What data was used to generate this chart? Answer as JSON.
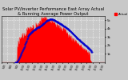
{
  "title": "Solar PV/Inverter Performance East Array Actual & Running Average Power Output",
  "title_fontsize": 3.8,
  "bg_color": "#c8c8c8",
  "plot_bg_color": "#c8c8c8",
  "grid_color": "#ffffff",
  "area_color": "#ff0000",
  "avg_color": "#0000cc",
  "ylim": [
    0,
    5500
  ],
  "xlim": [
    0,
    287
  ],
  "n_points": 288,
  "legend_fontsize": 2.8,
  "ytick_labels": [
    "1k",
    "2k",
    "3k",
    "4k",
    "5k"
  ],
  "ytick_values": [
    1000,
    2000,
    3000,
    4000,
    5000
  ]
}
